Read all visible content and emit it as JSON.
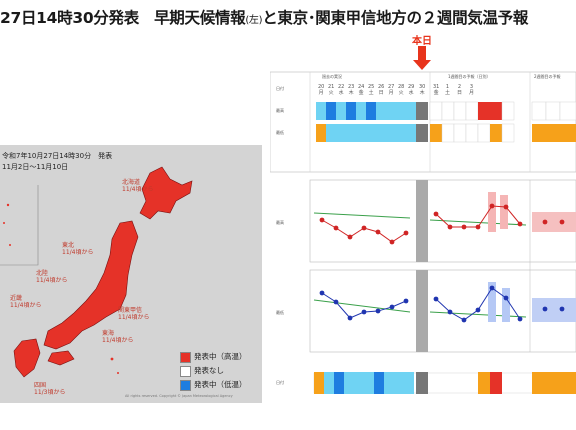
{
  "header": {
    "title_main": "27日14時30分発表　早期天候情報",
    "title_small": "(左)",
    "title_rest": "と東京･関東甲信地方の２週間気温予報"
  },
  "map": {
    "issued": "令和7年10月27日14時30分　発表",
    "period": "11月2日～11月10日",
    "regions": [
      {
        "name": "北海道",
        "date": "11/4頃から"
      },
      {
        "name": "東北",
        "date": "11/4頃から"
      },
      {
        "name": "北陸",
        "date": "11/4頃から"
      },
      {
        "name": "関東甲信",
        "date": "11/4頃から"
      },
      {
        "name": "東海",
        "date": "11/4頃から"
      },
      {
        "name": "近畿",
        "date": "11/4頃から"
      },
      {
        "name": "四国",
        "date": "11/3頃から"
      }
    ],
    "legend": [
      {
        "label": "発表中（高温）",
        "color": "#e53228"
      },
      {
        "label": "発表なし",
        "color": "#ffffff"
      },
      {
        "label": "発表中（低温）",
        "color": "#1e7de0"
      }
    ],
    "copyright": "All rights reserved. Copyright © Japan Meteorological Agency"
  },
  "forecast": {
    "today_label": "本日",
    "section_labels": [
      "過去の実況",
      "1週間目の予報（日別）",
      "2週間目の予報"
    ],
    "dates": [
      "20",
      "21",
      "22",
      "23",
      "24",
      "25",
      "26",
      "27",
      "28",
      "29",
      "30",
      "31",
      "1",
      "2",
      "3"
    ],
    "weekdays": [
      "月",
      "火",
      "水",
      "木",
      "金",
      "土",
      "日",
      "月",
      "火",
      "水",
      "木",
      "金",
      "土",
      "日",
      "月"
    ],
    "row_labels": [
      "日付",
      "最高",
      "最低"
    ],
    "chart_labels": [
      "最高",
      "最低"
    ]
  },
  "colors": {
    "warm_red": "#e53228",
    "cold_blue": "#1e7de0",
    "light_blue": "#6fd3f3",
    "orange": "#f6a11a"
  }
}
